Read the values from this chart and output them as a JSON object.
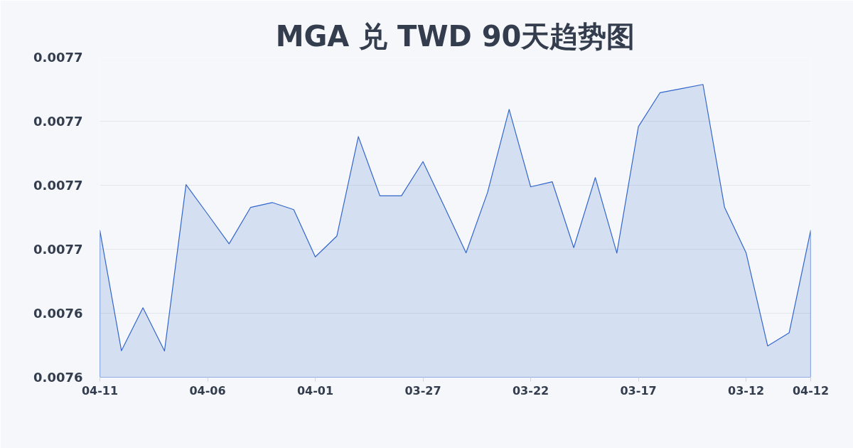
{
  "chart_data": {
    "type": "area",
    "title": "MGA 兑 TWD 90天趋势图",
    "categories": [
      "04-11",
      null,
      null,
      null,
      null,
      "04-06",
      null,
      null,
      null,
      null,
      "04-01",
      null,
      null,
      null,
      null,
      "03-27",
      null,
      null,
      null,
      null,
      "03-22",
      null,
      null,
      null,
      null,
      "03-17",
      null,
      null,
      null,
      null,
      "03-12",
      null,
      null,
      "04-12"
    ],
    "values": [
      0.0076659,
      0.0076283,
      0.0076417,
      0.0076282,
      0.0076802,
      0.007671,
      0.0076617,
      0.0076731,
      0.0076746,
      0.0076724,
      0.0076576,
      0.0076641,
      0.0076952,
      0.0076767,
      0.0076767,
      0.0076874,
      0.0076732,
      0.0076589,
      0.0076778,
      0.0077037,
      0.0076795,
      0.0076811,
      0.0076605,
      0.0076824,
      0.0076588,
      0.0076983,
      0.0077089,
      0.0077102,
      0.0077115,
      0.0076731,
      0.0076589,
      0.0076298,
      0.0076339,
      0.0076659
    ],
    "color": "#3366cc",
    "ylim": [
      0.00762,
      0.00772
    ],
    "yticks": [
      {
        "value": 0.00762,
        "label": "0.0076"
      },
      {
        "value": 0.00764,
        "label": "0.0076"
      },
      {
        "value": 0.00766,
        "label": "0.0077"
      },
      {
        "value": 0.00768,
        "label": "0.0077"
      },
      {
        "value": 0.0077,
        "label": "0.0077"
      },
      {
        "value": 0.00772,
        "label": "0.0077"
      }
    ],
    "grid": "y"
  }
}
